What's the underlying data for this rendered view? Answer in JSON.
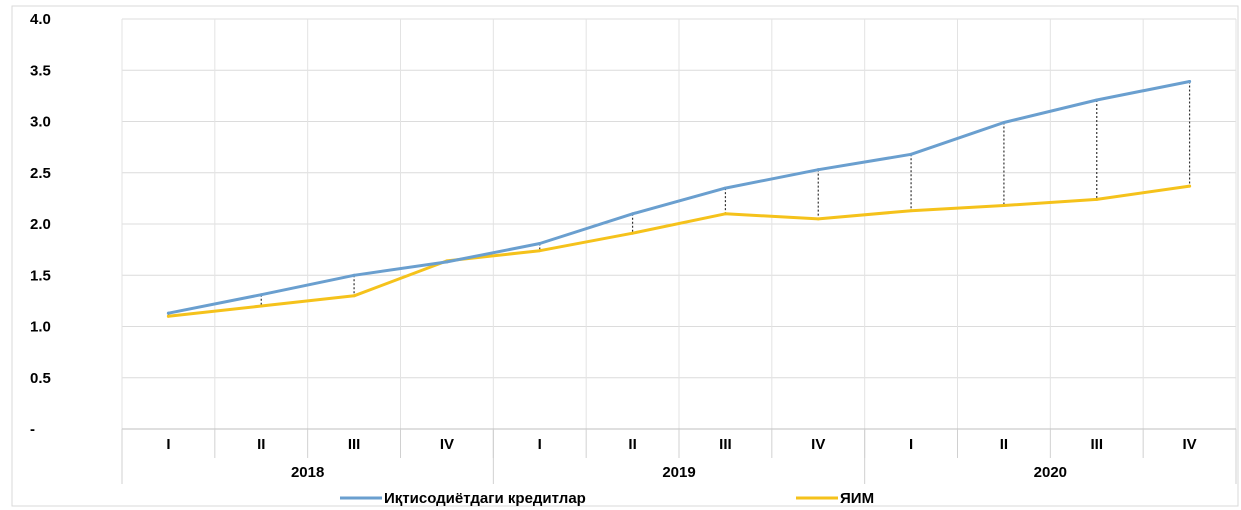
{
  "chart_data": {
    "type": "line",
    "title": "",
    "xlabel": "",
    "ylabel": "",
    "ylim": [
      0,
      4.0
    ],
    "yticks": [
      {
        "v": 0,
        "label": "-"
      },
      {
        "v": 0.5,
        "label": "0.5"
      },
      {
        "v": 1.0,
        "label": "1.0"
      },
      {
        "v": 1.5,
        "label": "1.5"
      },
      {
        "v": 2.0,
        "label": "2.0"
      },
      {
        "v": 2.5,
        "label": "2.5"
      },
      {
        "v": 3.0,
        "label": "3.0"
      },
      {
        "v": 3.5,
        "label": "3.5"
      },
      {
        "v": 4.0,
        "label": "4.0"
      }
    ],
    "categories": [
      "I",
      "II",
      "III",
      "IV",
      "I",
      "II",
      "III",
      "IV",
      "I",
      "II",
      "III",
      "IV"
    ],
    "groups": [
      {
        "label": "2018",
        "count": 4
      },
      {
        "label": "2019",
        "count": 4
      },
      {
        "label": "2020",
        "count": 4
      }
    ],
    "grid": true,
    "legend_position": "bottom",
    "series": [
      {
        "name": "Иқтисодиётдаги кредитлар",
        "color": "#6a9fcf",
        "values": [
          1.13,
          1.31,
          1.5,
          1.63,
          1.81,
          2.1,
          2.35,
          2.53,
          2.68,
          2.99,
          3.21,
          3.39
        ]
      },
      {
        "name": "ЯИМ",
        "color": "#f5c21b",
        "values": [
          1.1,
          1.2,
          1.3,
          1.64,
          1.74,
          1.91,
          2.1,
          2.05,
          2.13,
          2.18,
          2.24,
          2.37
        ]
      }
    ]
  }
}
